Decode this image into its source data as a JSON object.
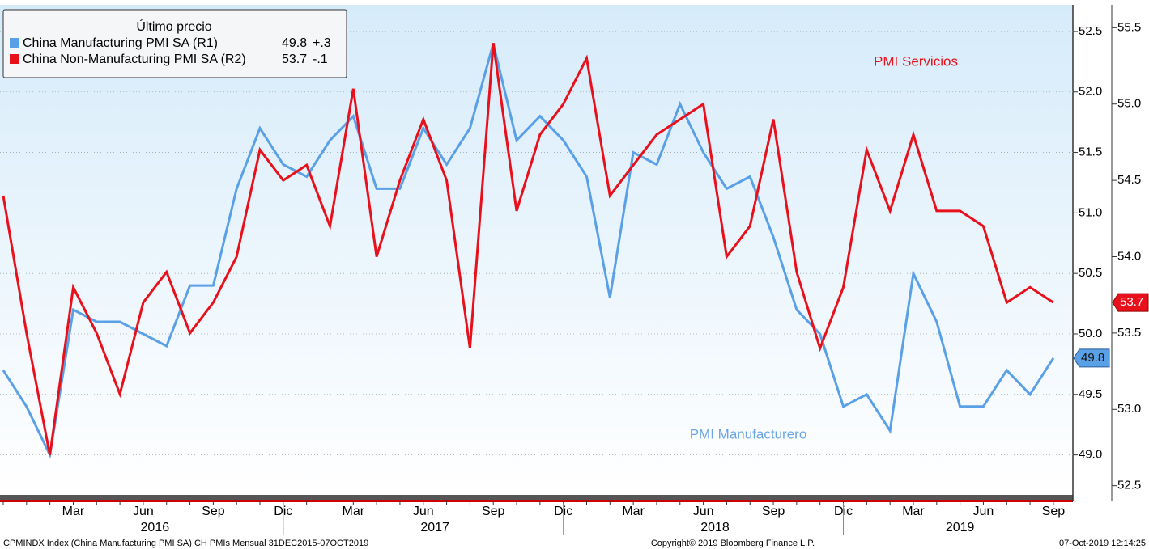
{
  "chart_data": {
    "type": "line",
    "legend": {
      "title": "Último precio",
      "changes": [
        "+.3",
        "-.1"
      ]
    },
    "categories": [
      null,
      null,
      null,
      "Mar",
      null,
      null,
      "Jun",
      null,
      null,
      "Sep",
      null,
      null,
      "Dic",
      null,
      null,
      "Mar",
      null,
      null,
      "Jun",
      null,
      null,
      "Sep",
      null,
      null,
      "Dic",
      null,
      null,
      "Mar",
      null,
      null,
      "Jun",
      null,
      null,
      "Sep",
      null,
      null,
      "Dic",
      null,
      null,
      "Mar",
      null,
      null,
      "Jun",
      null,
      null,
      "Sep"
    ],
    "years": [
      "2016",
      "2017",
      "2018",
      "2019"
    ],
    "series": [
      {
        "name": "China Manufacturing PMI SA  (R1)",
        "color": "#5aa0e6",
        "axis": "y",
        "values": [
          49.7,
          49.4,
          49.0,
          50.2,
          50.1,
          50.1,
          50.0,
          49.9,
          50.4,
          50.4,
          51.2,
          51.7,
          51.4,
          51.3,
          51.6,
          51.8,
          51.2,
          51.2,
          51.7,
          51.4,
          51.7,
          52.4,
          51.6,
          51.8,
          51.6,
          51.3,
          50.3,
          51.5,
          51.4,
          51.9,
          51.5,
          51.2,
          51.3,
          50.8,
          50.2,
          50.0,
          49.4,
          49.5,
          49.2,
          50.5,
          50.1,
          49.4,
          49.4,
          49.7,
          49.5,
          49.8
        ]
      },
      {
        "name": "China Non-Manufacturing PMI SA  (R2)",
        "color": "#e8101a",
        "axis": "y2",
        "values": [
          54.4,
          53.5,
          52.7,
          53.8,
          53.5,
          53.1,
          53.7,
          53.9,
          53.5,
          53.7,
          54.0,
          54.7,
          54.5,
          54.6,
          54.2,
          55.1,
          54.0,
          54.5,
          54.9,
          54.5,
          53.4,
          55.4,
          54.3,
          54.8,
          55.0,
          55.3,
          54.4,
          54.6,
          54.8,
          54.9,
          55.0,
          54.0,
          54.2,
          54.9,
          53.9,
          53.4,
          53.8,
          54.7,
          54.3,
          54.8,
          54.3,
          54.3,
          54.2,
          53.7,
          53.8,
          53.7
        ]
      }
    ],
    "ylim": [
      48.67,
      52.72
    ],
    "yticks": [
      {
        "value": 49.0,
        "label": "49.0"
      },
      49.5,
      {
        "value": 50.0,
        "label": "50.0"
      },
      50.5,
      {
        "value": 51.0,
        "label": "51.0"
      },
      51.5,
      {
        "value": 52.0,
        "label": "52.0"
      },
      52.5
    ],
    "y2lim": [
      52.44,
      55.65
    ],
    "y2ticks": [
      52.5,
      {
        "value": 53.0,
        "label": "53.0"
      },
      53.5,
      {
        "value": 54.0,
        "label": "54.0"
      },
      54.5,
      {
        "value": 55.0,
        "label": "55.0"
      },
      55.5
    ],
    "grid": true,
    "annotations": [
      "PMI Servicios",
      "PMI Manufacturero"
    ],
    "footer": [
      "CPMINDX Index (China Manufacturing PMI SA) CH PMIs  Mensual 31DEC2015-07OCT2019",
      "Copyright© 2019 Bloomberg Finance L.P.",
      "07-Oct-2019 12:14:25"
    ]
  }
}
